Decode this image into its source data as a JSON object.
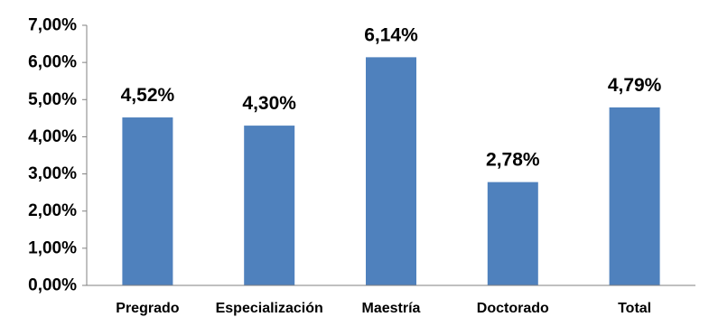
{
  "chart_data": {
    "type": "bar",
    "title": "",
    "xlabel": "",
    "ylabel": "",
    "categories": [
      "Pregrado",
      "Especialización",
      "Maestría",
      "Doctorado",
      "Total"
    ],
    "values": [
      4.52,
      4.3,
      6.14,
      2.78,
      4.79
    ],
    "data_labels": [
      "4,52%",
      "4,30%",
      "6,14%",
      "2,78%",
      "4,79%"
    ],
    "ylim": [
      0,
      7
    ],
    "y_ticks": [
      0,
      1,
      2,
      3,
      4,
      5,
      6,
      7
    ],
    "y_tick_labels": [
      "0,00%",
      "1,00%",
      "2,00%",
      "3,00%",
      "4,00%",
      "5,00%",
      "6,00%",
      "7,00%"
    ],
    "grid": false,
    "legend": "none",
    "bar_color": "#4F81BD",
    "axis_color": "#808080"
  }
}
